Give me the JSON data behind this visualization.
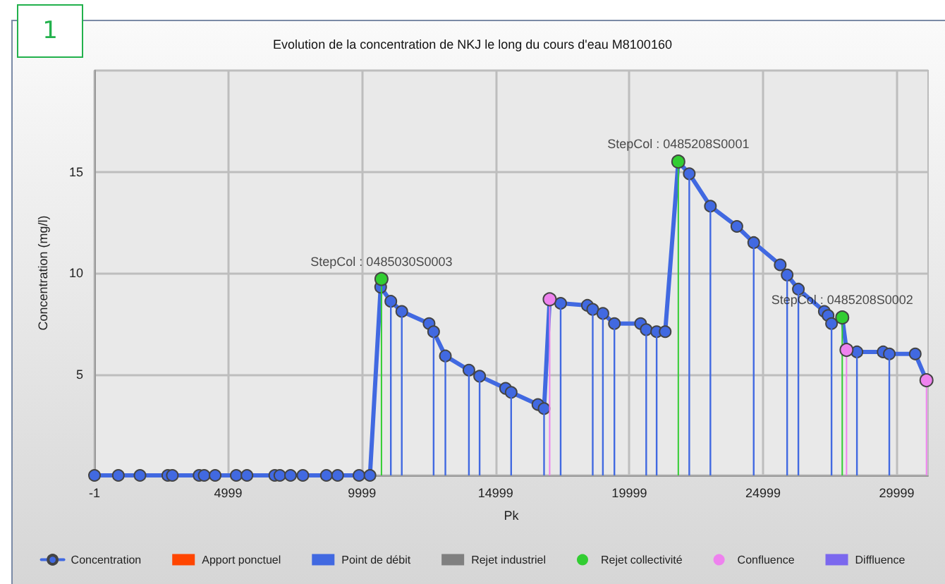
{
  "chart_data": {
    "type": "line",
    "title": "Evolution de la concentration de NKJ le long du cours d'eau M8100160",
    "xlabel": "Pk",
    "ylabel": "Concentration (mg/l)",
    "annotations": [
      "1",
      {
        "text": "StepCol : 0485030S0003",
        "x": 10730,
        "y": 9.7
      },
      {
        "text": "StepCol : 0485208S0001",
        "x": 21830,
        "y": 15.5
      },
      {
        "text": "StepCol : 0485208S0002",
        "x": 27960,
        "y": 7.8
      }
    ],
    "xlim": [
      -1,
      31170
    ],
    "xticks": [
      -1,
      4999,
      9999,
      14999,
      19999,
      24999,
      29999
    ],
    "ylim": [
      0,
      20
    ],
    "yticks": [
      {
        "value": 0,
        "label": null
      },
      5,
      10,
      15,
      {
        "value": 20,
        "label": null
      }
    ],
    "grid": true,
    "legend": "bottom",
    "series": [
      {
        "name": "Concentration",
        "color": "#4169e1",
        "marker": "circle",
        "line_style": "solid",
        "x": [
          -1,
          890,
          1700,
          2740,
          2910,
          3910,
          4100,
          4510,
          5300,
          5700,
          6740,
          6930,
          7330,
          7790,
          8670,
          9090,
          9890,
          10300,
          10700,
          11080,
          11490,
          12510,
          12680,
          13120,
          14000,
          14400,
          15370,
          15580,
          16580,
          16810,
          17020,
          17430,
          18430,
          18630,
          19010,
          19440,
          20420,
          20630,
          21020,
          21340,
          21830,
          22240,
          23030,
          24020,
          24650,
          25640,
          25900,
          26320,
          27290,
          27430,
          27560,
          27960,
          28120,
          28510,
          29490,
          29720,
          30690,
          31110
        ],
        "values": [
          0,
          0,
          0,
          0,
          0,
          0,
          0,
          0,
          0,
          0,
          0,
          0,
          0,
          0,
          0,
          0,
          0,
          0,
          9.3,
          8.6,
          8.1,
          7.5,
          7.1,
          5.9,
          5.2,
          4.9,
          4.3,
          4.1,
          3.5,
          3.3,
          8.7,
          8.5,
          8.4,
          8.2,
          8.0,
          7.5,
          7.5,
          7.2,
          7.1,
          7.1,
          15.5,
          14.9,
          13.3,
          12.3,
          11.5,
          10.4,
          9.9,
          9.2,
          8.1,
          7.9,
          7.5,
          7.8,
          6.2,
          6.1,
          6.1,
          6.0,
          6.0,
          4.7
        ]
      },
      {
        "name": "Apport ponctuel",
        "type": "bar",
        "color": "#ff4500"
      },
      {
        "name": "Point de débit",
        "type": "bar",
        "color": "#4169e1",
        "x": [
          11080,
          11490,
          12680,
          13120,
          14000,
          14400,
          15580,
          16810,
          17430,
          18630,
          19010,
          19440,
          20630,
          21020,
          22240,
          23030,
          24650,
          25900,
          26320,
          27560,
          28510,
          29720
        ],
        "values": [
          8.6,
          8.1,
          7.1,
          5.9,
          5.2,
          4.9,
          4.1,
          3.3,
          8.5,
          8.2,
          8.0,
          7.5,
          7.2,
          7.1,
          14.9,
          13.3,
          11.5,
          9.9,
          9.2,
          7.5,
          6.1,
          6.0
        ]
      },
      {
        "name": "Rejet industriel",
        "type": "bar",
        "color": "#808080"
      },
      {
        "name": "Rejet collectivité",
        "type": "lollipop",
        "color": "#32cd32",
        "marker": "circle",
        "x": [
          10730,
          21830,
          27960
        ],
        "values": [
          9.7,
          15.5,
          7.8
        ]
      },
      {
        "name": "Confluence",
        "type": "lollipop",
        "color": "#ee82ee",
        "marker": "circle",
        "x": [
          17020,
          28120,
          31110
        ],
        "values": [
          8.7,
          6.2,
          4.7
        ]
      },
      {
        "name": "Diffluence",
        "type": "bar",
        "color": "#7b68ee"
      }
    ]
  }
}
